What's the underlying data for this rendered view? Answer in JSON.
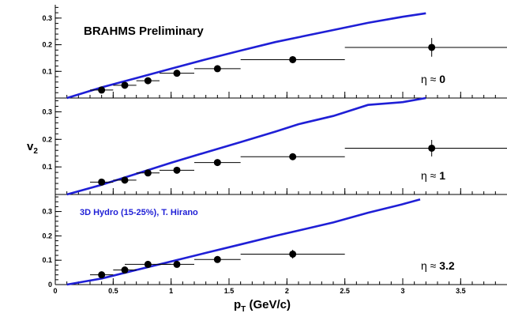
{
  "chart_data": {
    "type": "scatter",
    "xlabel_main": "p",
    "xlabel_sub": "T",
    "xlabel_units": " (GeV/c)",
    "ylabel_main": "v",
    "ylabel_sub": "2",
    "xlim": [
      0,
      3.9
    ],
    "x_ticks": [
      "0",
      "0.5",
      "1",
      "1.5",
      "2",
      "2.5",
      "3",
      "3.5"
    ],
    "x_tick_values": [
      0,
      0.5,
      1,
      1.5,
      2,
      2.5,
      3,
      3.5
    ],
    "colors": {
      "theory": "#1f1fd6",
      "data": "#000000",
      "axes": "#000000"
    },
    "theory_legend": "3D Hydro (15-25%), T. Hirano",
    "panels": [
      {
        "id": "top",
        "ylim": [
          0,
          0.35
        ],
        "y_ticks": [
          "0.1",
          "0.2",
          "0.3"
        ],
        "y_tick_values": [
          0.1,
          0.2,
          0.3
        ],
        "banner": "BRAHMS Preliminary",
        "eta_label": "η ≈ ",
        "eta_value": "0",
        "points": [
          {
            "x": 0.4,
            "y": 0.03,
            "xerr": 0.1,
            "yerr": 0.006
          },
          {
            "x": 0.6,
            "y": 0.048,
            "xerr": 0.1,
            "yerr": 0.006
          },
          {
            "x": 0.8,
            "y": 0.065,
            "xerr": 0.1,
            "yerr": 0.006
          },
          {
            "x": 1.05,
            "y": 0.093,
            "xerr": 0.15,
            "yerr": 0.007
          },
          {
            "x": 1.4,
            "y": 0.11,
            "xerr": 0.2,
            "yerr": 0.008
          },
          {
            "x": 2.05,
            "y": 0.144,
            "xerr": 0.45,
            "yerr": 0.012
          },
          {
            "x": 3.25,
            "y": 0.19,
            "xerr": 0.75,
            "yerr": 0.035
          }
        ],
        "theory": [
          [
            0.1,
            0.0
          ],
          [
            0.4,
            0.04
          ],
          [
            0.7,
            0.075
          ],
          [
            1.0,
            0.11
          ],
          [
            1.3,
            0.145
          ],
          [
            1.6,
            0.178
          ],
          [
            1.9,
            0.21
          ],
          [
            2.1,
            0.228
          ],
          [
            2.4,
            0.255
          ],
          [
            2.7,
            0.282
          ],
          [
            3.0,
            0.305
          ],
          [
            3.2,
            0.318
          ]
        ]
      },
      {
        "id": "middle",
        "ylim": [
          0,
          0.35
        ],
        "y_ticks": [
          "0.1",
          "0.2",
          "0.3"
        ],
        "y_tick_values": [
          0.1,
          0.2,
          0.3
        ],
        "eta_label": "η ≈ ",
        "eta_value": "1",
        "points": [
          {
            "x": 0.4,
            "y": 0.045,
            "xerr": 0.1,
            "yerr": 0.006
          },
          {
            "x": 0.6,
            "y": 0.052,
            "xerr": 0.1,
            "yerr": 0.006
          },
          {
            "x": 0.8,
            "y": 0.078,
            "xerr": 0.1,
            "yerr": 0.006
          },
          {
            "x": 1.05,
            "y": 0.088,
            "xerr": 0.15,
            "yerr": 0.007
          },
          {
            "x": 1.4,
            "y": 0.116,
            "xerr": 0.2,
            "yerr": 0.008
          },
          {
            "x": 2.05,
            "y": 0.137,
            "xerr": 0.45,
            "yerr": 0.01
          },
          {
            "x": 3.25,
            "y": 0.168,
            "xerr": 0.75,
            "yerr": 0.03
          }
        ],
        "theory": [
          [
            0.1,
            0.0
          ],
          [
            0.4,
            0.035
          ],
          [
            0.7,
            0.075
          ],
          [
            1.0,
            0.115
          ],
          [
            1.3,
            0.153
          ],
          [
            1.6,
            0.19
          ],
          [
            1.9,
            0.228
          ],
          [
            2.1,
            0.255
          ],
          [
            2.4,
            0.285
          ],
          [
            2.7,
            0.325
          ],
          [
            3.0,
            0.335
          ],
          [
            3.2,
            0.35
          ]
        ]
      },
      {
        "id": "bottom",
        "ylim": [
          0,
          0.37
        ],
        "y_ticks": [
          "0",
          "0.1",
          "0.2",
          "0.3"
        ],
        "y_tick_values": [
          0,
          0.1,
          0.2,
          0.3
        ],
        "eta_label": "η ≈ ",
        "eta_value": "3.2",
        "points": [
          {
            "x": 0.4,
            "y": 0.04,
            "xerr": 0.1,
            "yerr": 0.006
          },
          {
            "x": 0.6,
            "y": 0.06,
            "xerr": 0.1,
            "yerr": 0.006
          },
          {
            "x": 0.8,
            "y": 0.083,
            "xerr": 0.2,
            "yerr": 0.006
          },
          {
            "x": 1.05,
            "y": 0.083,
            "xerr": 0.15,
            "yerr": 0.007
          },
          {
            "x": 1.4,
            "y": 0.103,
            "xerr": 0.2,
            "yerr": 0.008
          },
          {
            "x": 2.05,
            "y": 0.125,
            "xerr": 0.45,
            "yerr": 0.018
          }
        ],
        "theory": [
          [
            0.1,
            0.0
          ],
          [
            0.4,
            0.025
          ],
          [
            0.7,
            0.06
          ],
          [
            1.0,
            0.095
          ],
          [
            1.3,
            0.13
          ],
          [
            1.6,
            0.165
          ],
          [
            1.9,
            0.2
          ],
          [
            2.1,
            0.222
          ],
          [
            2.4,
            0.255
          ],
          [
            2.7,
            0.295
          ],
          [
            3.0,
            0.33
          ],
          [
            3.15,
            0.35
          ]
        ]
      }
    ]
  }
}
